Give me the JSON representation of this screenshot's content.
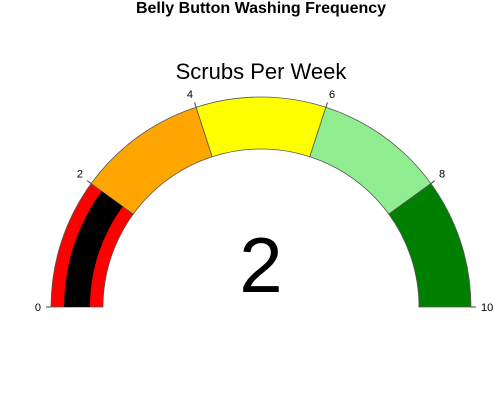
{
  "title": "Belly Button Washing Frequency",
  "chart_data": {
    "type": "gauge",
    "gauge_title": "Scrubs Per Week",
    "value": 2,
    "range": [
      0,
      10
    ],
    "ticks": [
      0,
      2,
      4,
      6,
      8,
      10
    ],
    "tick_labels": [
      "0",
      "2",
      "4",
      "6",
      "8",
      "10"
    ],
    "bands": [
      {
        "from": 0,
        "to": 2,
        "color": "#ff0000"
      },
      {
        "from": 2,
        "to": 4,
        "color": "#ffa500"
      },
      {
        "from": 4,
        "to": 6,
        "color": "#ffff00"
      },
      {
        "from": 6,
        "to": 8,
        "color": "#90ee90"
      },
      {
        "from": 8,
        "to": 10,
        "color": "#008000"
      }
    ],
    "bar_color": "#000000",
    "value_label": "2"
  }
}
